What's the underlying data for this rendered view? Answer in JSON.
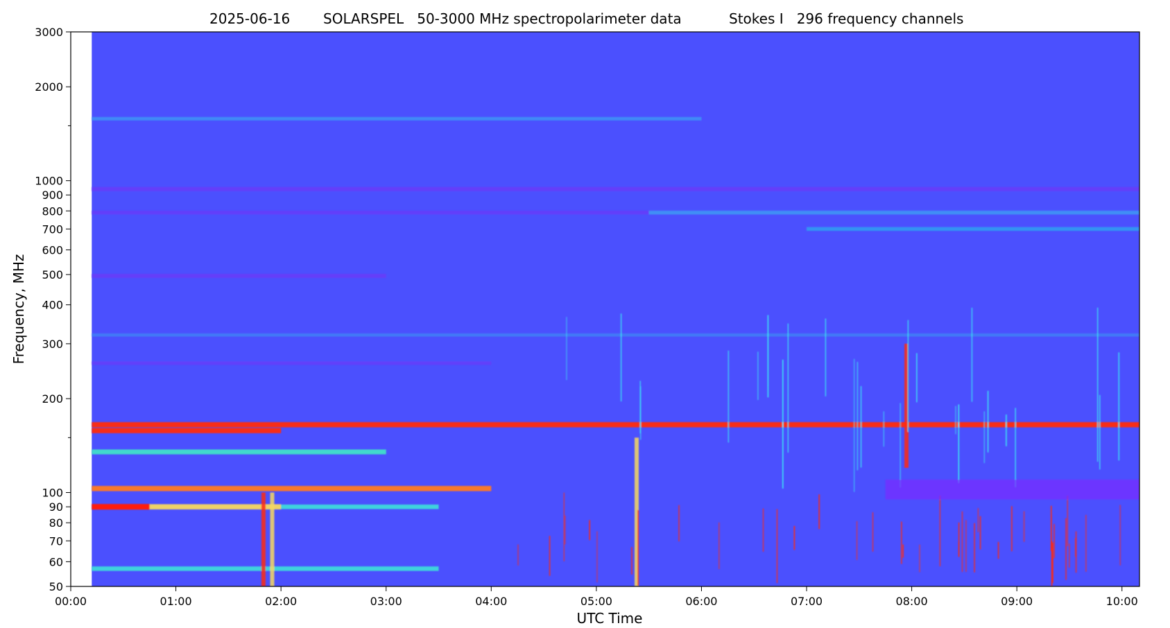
{
  "chart_data": {
    "type": "heatmap",
    "title": {
      "date": "2025-06-16",
      "instrument": "SOLARSPEL   50-3000 MHz spectropolarimeter data",
      "product": "Stokes I   296 frequency channels"
    },
    "xlabel": "UTC Time",
    "ylabel": "Frequency, MHz",
    "x_scale": "time",
    "y_scale": "log",
    "xlim": [
      "00:00",
      "10:10"
    ],
    "ylim": [
      50,
      3000
    ],
    "x_tick_labels": [
      "00:00",
      "01:00",
      "02:00",
      "03:00",
      "04:00",
      "05:00",
      "06:00",
      "07:00",
      "08:00",
      "09:00",
      "10:00"
    ],
    "y_ticks": [
      50,
      60,
      70,
      80,
      90,
      100,
      200,
      300,
      400,
      500,
      600,
      700,
      800,
      900,
      1000,
      2000,
      3000
    ],
    "y_minor_ticks": [
      150,
      1500
    ],
    "data_start": "00:12",
    "colormap": "rainbow",
    "background_color": "#4b50fe",
    "grid": false,
    "legend": "none",
    "features": [
      {
        "kind": "band",
        "freq": 940,
        "t0": "00:12",
        "t1": "10:10",
        "color": "#6a3af8",
        "intensity": 0.6
      },
      {
        "kind": "band",
        "freq": 790,
        "t0": "00:12",
        "t1": "05:30",
        "color": "#6a3af8",
        "intensity": 0.5
      },
      {
        "kind": "band",
        "freq": 790,
        "t0": "05:30",
        "t1": "10:10",
        "color": "#3ca0f4",
        "intensity": 0.5
      },
      {
        "kind": "band",
        "freq": 700,
        "t0": "07:00",
        "t1": "10:10",
        "color": "#2fa8f0",
        "intensity": 0.5
      },
      {
        "kind": "band",
        "freq": 495,
        "t0": "00:12",
        "t1": "03:00",
        "color": "#6a3af8",
        "intensity": 0.6
      },
      {
        "kind": "band",
        "freq": 1580,
        "t0": "00:12",
        "t1": "06:00",
        "color": "#3ca0f4",
        "intensity": 0.4
      },
      {
        "kind": "band",
        "freq": 320,
        "t0": "00:12",
        "t1": "10:10",
        "color": "#3c8cf4",
        "intensity": 0.3
      },
      {
        "kind": "band",
        "freq": 260,
        "t0": "00:12",
        "t1": "04:00",
        "color": "#6a3af8",
        "intensity": 0.4
      },
      {
        "kind": "band",
        "freq": 165,
        "t0": "00:12",
        "t1": "10:10",
        "color": "#ff2a12",
        "intensity": 0.9
      },
      {
        "kind": "band",
        "freq": 158,
        "t0": "00:12",
        "t1": "02:00",
        "color": "#ff2a12",
        "intensity": 0.9
      },
      {
        "kind": "band",
        "freq": 135,
        "t0": "00:12",
        "t1": "03:00",
        "color": "#40e6c8",
        "intensity": 0.8
      },
      {
        "kind": "band",
        "freq": 103,
        "t0": "00:12",
        "t1": "04:00",
        "color": "#ff7a20",
        "intensity": 0.9
      },
      {
        "kind": "band",
        "freq": 90,
        "t0": "00:12",
        "t1": "00:45",
        "color": "#ff1a0a",
        "intensity": 1.0
      },
      {
        "kind": "band",
        "freq": 90,
        "t0": "00:45",
        "t1": "02:00",
        "color": "#f6d860",
        "intensity": 0.9
      },
      {
        "kind": "band",
        "freq": 90,
        "t0": "02:00",
        "t1": "03:30",
        "color": "#3ce6d8",
        "intensity": 0.7
      },
      {
        "kind": "band",
        "freq": 57,
        "t0": "00:12",
        "t1": "03:30",
        "color": "#3ce6d8",
        "intensity": 0.7
      },
      {
        "kind": "burst",
        "time": "01:50",
        "f0": 50,
        "f1": 100,
        "color": "#ff2a12",
        "intensity": 0.9
      },
      {
        "kind": "burst",
        "time": "01:55",
        "f0": 50,
        "f1": 100,
        "color": "#f6d860",
        "intensity": 0.8
      },
      {
        "kind": "burst",
        "time": "05:23",
        "f0": 50,
        "f1": 150,
        "color": "#f6d860",
        "intensity": 0.8
      },
      {
        "kind": "burst",
        "time": "07:57",
        "f0": 120,
        "f1": 300,
        "color": "#ff2a12",
        "intensity": 0.9
      },
      {
        "kind": "activity",
        "t0": "04:15",
        "t1": "10:00",
        "f0": 50,
        "f1": 100,
        "color": "#ff2a12",
        "intensity": 0.6
      },
      {
        "kind": "activity",
        "t0": "04:15",
        "t1": "10:00",
        "f0": 100,
        "f1": 400,
        "color": "#3ce6f4",
        "intensity": 0.4
      },
      {
        "kind": "region",
        "t0": "07:45",
        "t1": "10:10",
        "f0": 95,
        "f1": 110,
        "color": "#7a2aff",
        "intensity": 0.7
      }
    ]
  }
}
